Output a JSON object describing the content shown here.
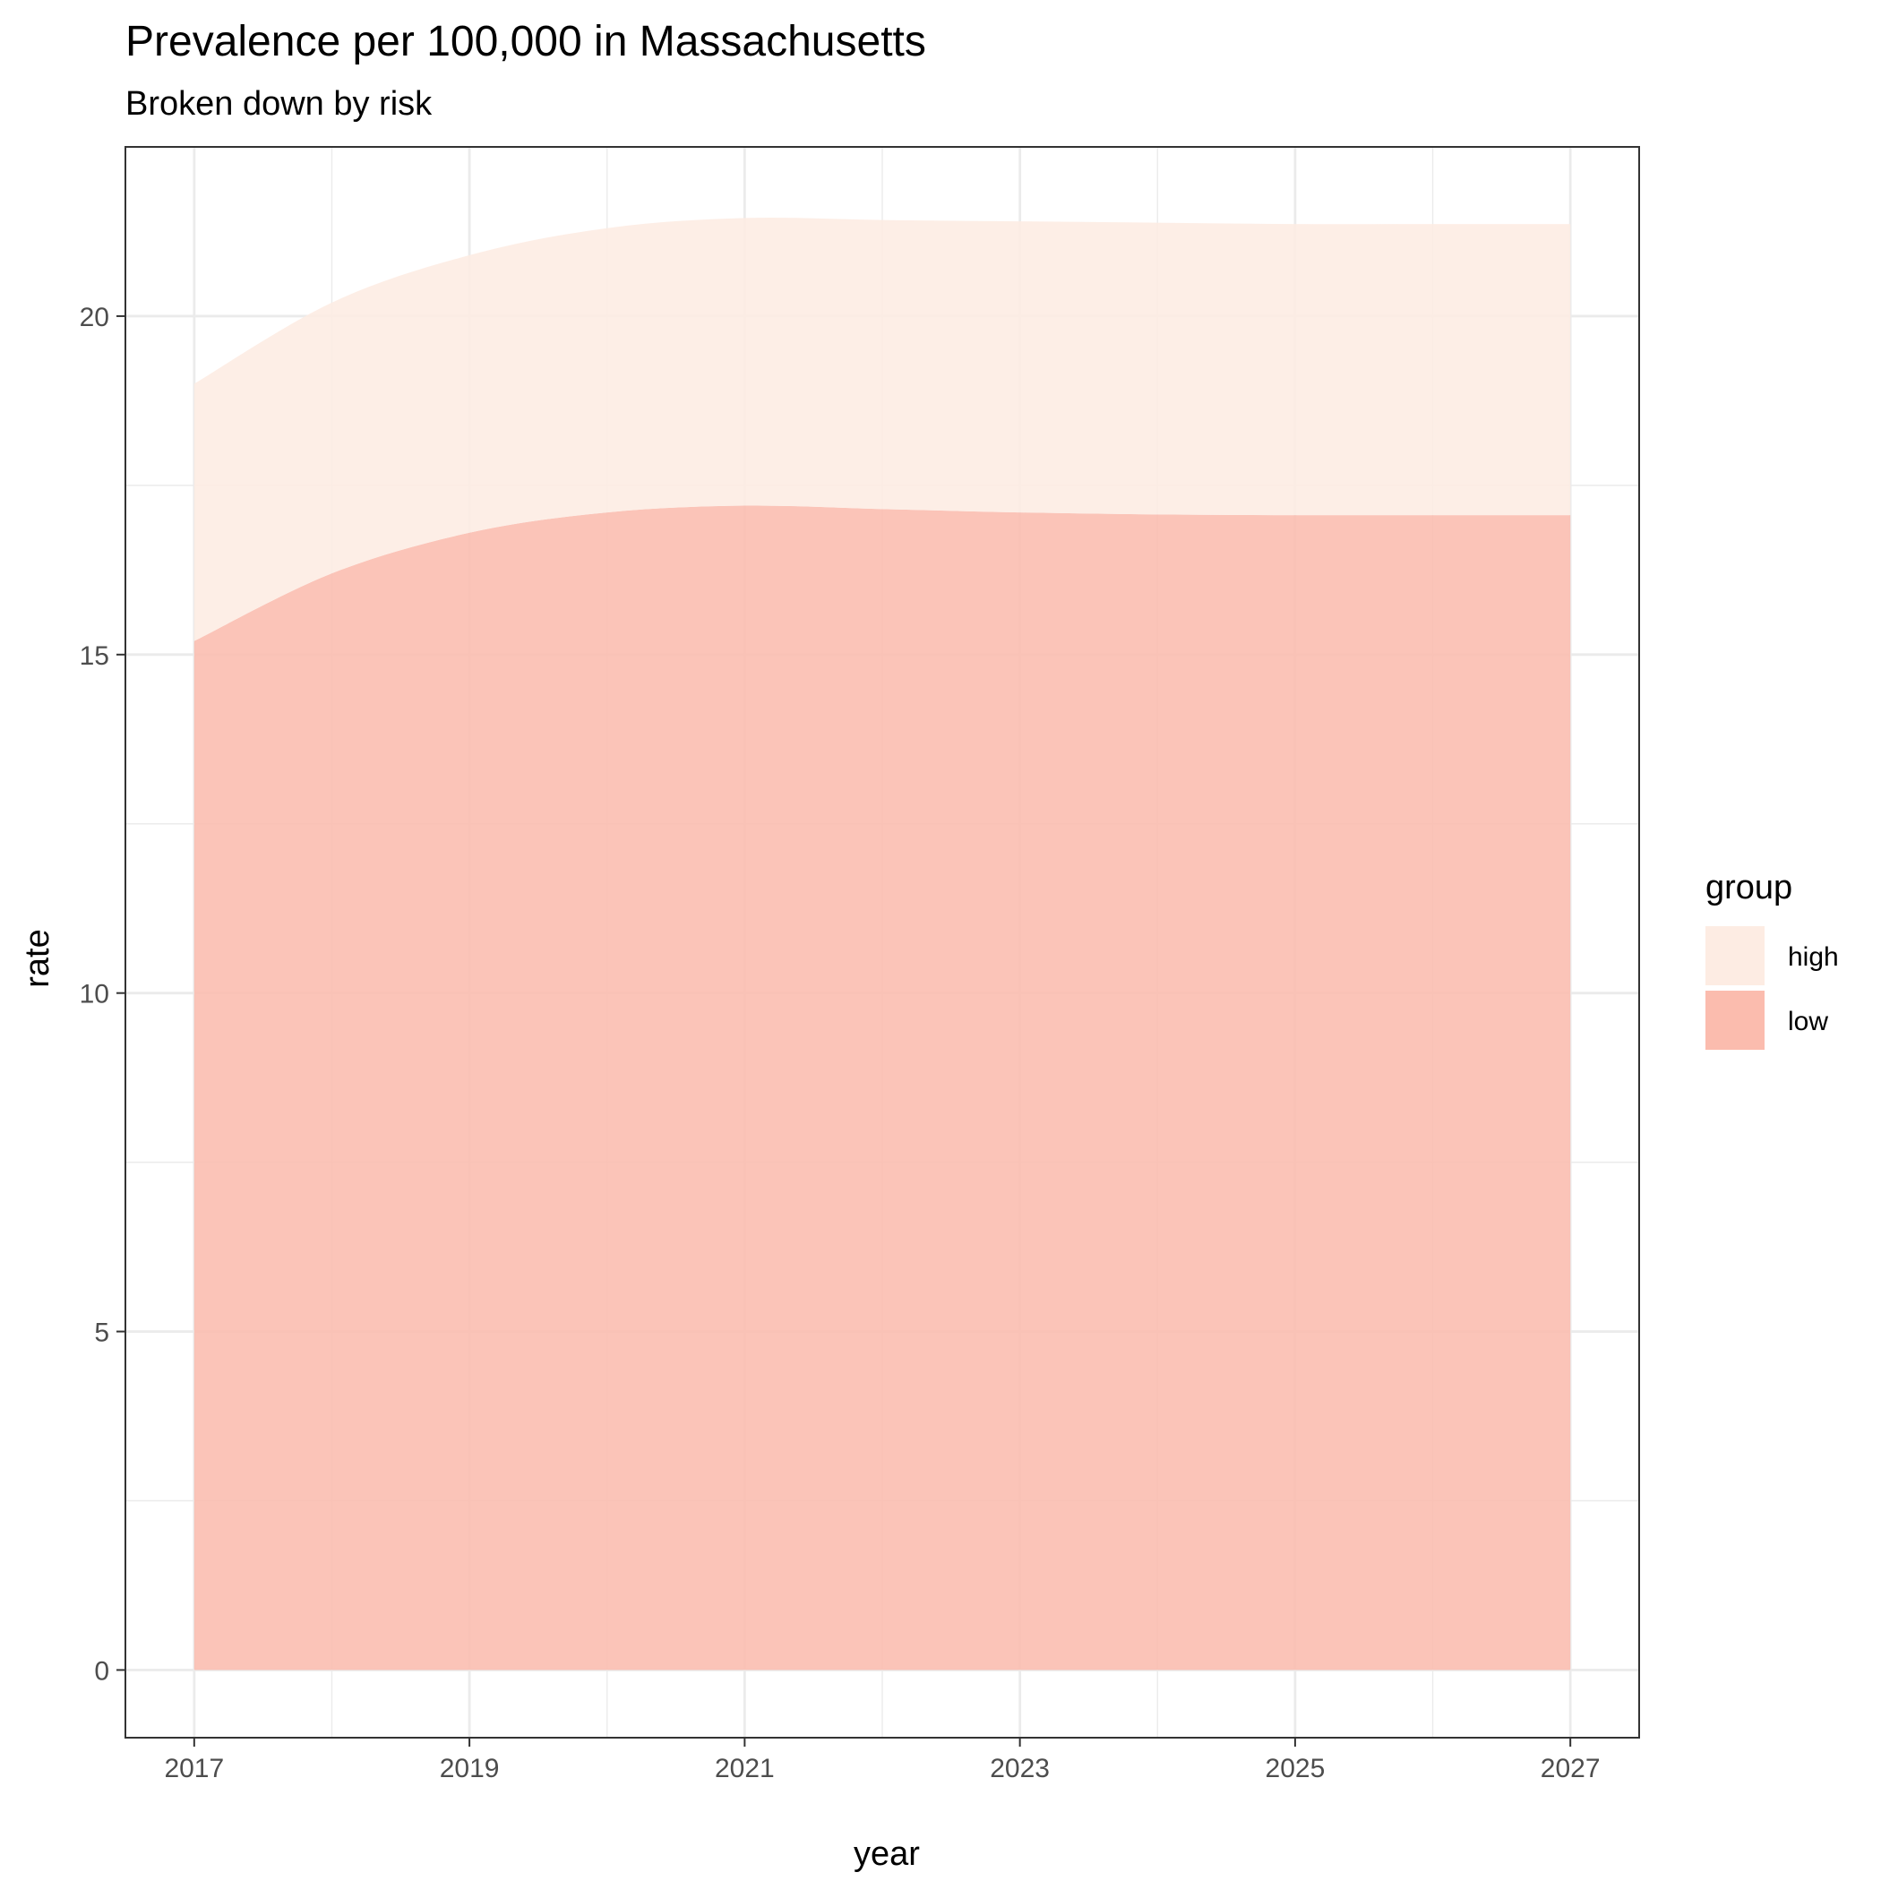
{
  "chart_data": {
    "type": "area",
    "stacked": true,
    "title": "Prevalence per 100,000 in Massachusetts",
    "subtitle": "Broken down by risk",
    "xlabel": "year",
    "ylabel": "rate",
    "x": [
      2017,
      2018,
      2019,
      2020,
      2021,
      2022,
      2023,
      2024,
      2025,
      2026,
      2027
    ],
    "series": [
      {
        "name": "low",
        "color": "#fbbcae",
        "values": [
          15.2,
          16.2,
          16.8,
          17.1,
          17.2,
          17.15,
          17.1,
          17.07,
          17.06,
          17.06,
          17.06
        ]
      },
      {
        "name": "high",
        "color": "#fdece3",
        "values": [
          3.8,
          4.0,
          4.1,
          4.2,
          4.25,
          4.27,
          4.3,
          4.31,
          4.3,
          4.3,
          4.3
        ]
      }
    ],
    "xlim": [
      2016.5,
      2027.5
    ],
    "ylim": [
      -1,
      22.5
    ],
    "x_ticks": [
      2017,
      2019,
      2021,
      2023,
      2025,
      2027
    ],
    "y_ticks": [
      0,
      5,
      10,
      15,
      20
    ],
    "grid": true,
    "legend": {
      "title": "group",
      "position": "right",
      "entries": [
        {
          "label": "high",
          "color": "#fdece3"
        },
        {
          "label": "low",
          "color": "#fbbcae"
        }
      ]
    }
  }
}
